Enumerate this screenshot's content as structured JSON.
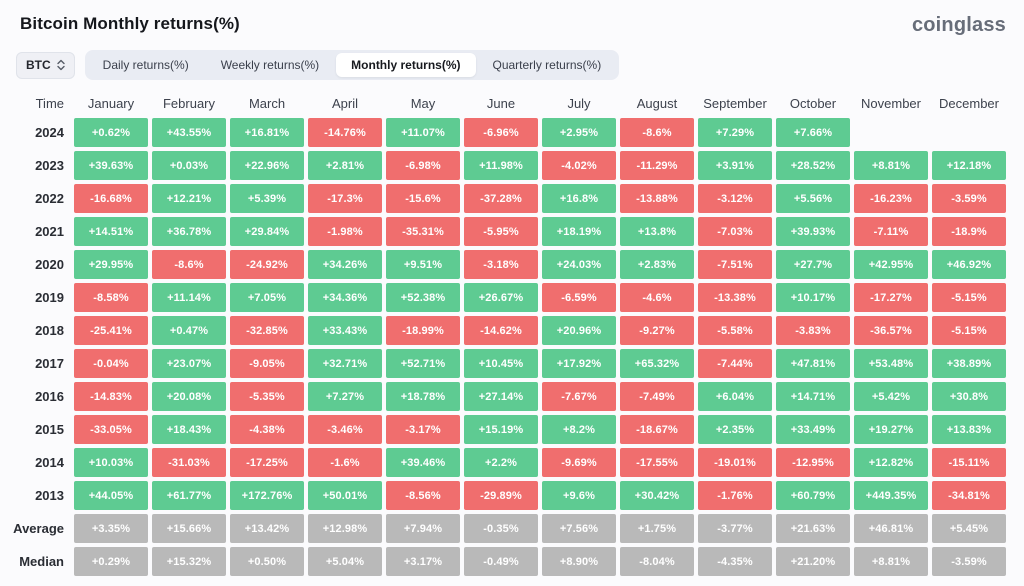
{
  "header": {
    "title": "Bitcoin Monthly returns(%)",
    "logo": "coinglass"
  },
  "controls": {
    "symbol": "BTC",
    "tabs": [
      {
        "label": "Daily returns(%)",
        "active": false
      },
      {
        "label": "Weekly returns(%)",
        "active": false
      },
      {
        "label": "Monthly returns(%)",
        "active": true
      },
      {
        "label": "Quarterly returns(%)",
        "active": false
      }
    ]
  },
  "colors": {
    "positive": "#5ecb92",
    "negative": "#f06e6e",
    "neutral": "#b9b9b9"
  },
  "chart_data": {
    "type": "heatmap",
    "title": "Bitcoin Monthly returns(%)",
    "legend": "green = positive monthly return, red = negative, gray = summary rows",
    "columns": [
      "Time",
      "January",
      "February",
      "March",
      "April",
      "May",
      "June",
      "July",
      "August",
      "September",
      "October",
      "November",
      "December"
    ],
    "rows": [
      {
        "label": "2024",
        "values": [
          "+0.62%",
          "+43.55%",
          "+16.81%",
          "-14.76%",
          "+11.07%",
          "-6.96%",
          "+2.95%",
          "-8.6%",
          "+7.29%",
          "+7.66%",
          null,
          null
        ]
      },
      {
        "label": "2023",
        "values": [
          "+39.63%",
          "+0.03%",
          "+22.96%",
          "+2.81%",
          "-6.98%",
          "+11.98%",
          "-4.02%",
          "-11.29%",
          "+3.91%",
          "+28.52%",
          "+8.81%",
          "+12.18%"
        ]
      },
      {
        "label": "2022",
        "values": [
          "-16.68%",
          "+12.21%",
          "+5.39%",
          "-17.3%",
          "-15.6%",
          "-37.28%",
          "+16.8%",
          "-13.88%",
          "-3.12%",
          "+5.56%",
          "-16.23%",
          "-3.59%"
        ]
      },
      {
        "label": "2021",
        "values": [
          "+14.51%",
          "+36.78%",
          "+29.84%",
          "-1.98%",
          "-35.31%",
          "-5.95%",
          "+18.19%",
          "+13.8%",
          "-7.03%",
          "+39.93%",
          "-7.11%",
          "-18.9%"
        ]
      },
      {
        "label": "2020",
        "values": [
          "+29.95%",
          "-8.6%",
          "-24.92%",
          "+34.26%",
          "+9.51%",
          "-3.18%",
          "+24.03%",
          "+2.83%",
          "-7.51%",
          "+27.7%",
          "+42.95%",
          "+46.92%"
        ]
      },
      {
        "label": "2019",
        "values": [
          "-8.58%",
          "+11.14%",
          "+7.05%",
          "+34.36%",
          "+52.38%",
          "+26.67%",
          "-6.59%",
          "-4.6%",
          "-13.38%",
          "+10.17%",
          "-17.27%",
          "-5.15%"
        ]
      },
      {
        "label": "2018",
        "values": [
          "-25.41%",
          "+0.47%",
          "-32.85%",
          "+33.43%",
          "-18.99%",
          "-14.62%",
          "+20.96%",
          "-9.27%",
          "-5.58%",
          "-3.83%",
          "-36.57%",
          "-5.15%"
        ]
      },
      {
        "label": "2017",
        "values": [
          "-0.04%",
          "+23.07%",
          "-9.05%",
          "+32.71%",
          "+52.71%",
          "+10.45%",
          "+17.92%",
          "+65.32%",
          "-7.44%",
          "+47.81%",
          "+53.48%",
          "+38.89%"
        ]
      },
      {
        "label": "2016",
        "values": [
          "-14.83%",
          "+20.08%",
          "-5.35%",
          "+7.27%",
          "+18.78%",
          "+27.14%",
          "-7.67%",
          "-7.49%",
          "+6.04%",
          "+14.71%",
          "+5.42%",
          "+30.8%"
        ]
      },
      {
        "label": "2015",
        "values": [
          "-33.05%",
          "+18.43%",
          "-4.38%",
          "-3.46%",
          "-3.17%",
          "+15.19%",
          "+8.2%",
          "-18.67%",
          "+2.35%",
          "+33.49%",
          "+19.27%",
          "+13.83%"
        ]
      },
      {
        "label": "2014",
        "values": [
          "+10.03%",
          "-31.03%",
          "-17.25%",
          "-1.6%",
          "+39.46%",
          "+2.2%",
          "-9.69%",
          "-17.55%",
          "-19.01%",
          "-12.95%",
          "+12.82%",
          "-15.11%"
        ]
      },
      {
        "label": "2013",
        "values": [
          "+44.05%",
          "+61.77%",
          "+172.76%",
          "+50.01%",
          "-8.56%",
          "-29.89%",
          "+9.6%",
          "+30.42%",
          "-1.76%",
          "+60.79%",
          "+449.35%",
          "-34.81%"
        ]
      },
      {
        "label": "Average",
        "neutral": true,
        "values": [
          "+3.35%",
          "+15.66%",
          "+13.42%",
          "+12.98%",
          "+7.94%",
          "-0.35%",
          "+7.56%",
          "+1.75%",
          "-3.77%",
          "+21.63%",
          "+46.81%",
          "+5.45%"
        ]
      },
      {
        "label": "Median",
        "neutral": true,
        "values": [
          "+0.29%",
          "+15.32%",
          "+0.50%",
          "+5.04%",
          "+3.17%",
          "-0.49%",
          "+8.90%",
          "-8.04%",
          "-4.35%",
          "+21.20%",
          "+8.81%",
          "-3.59%"
        ]
      }
    ]
  }
}
